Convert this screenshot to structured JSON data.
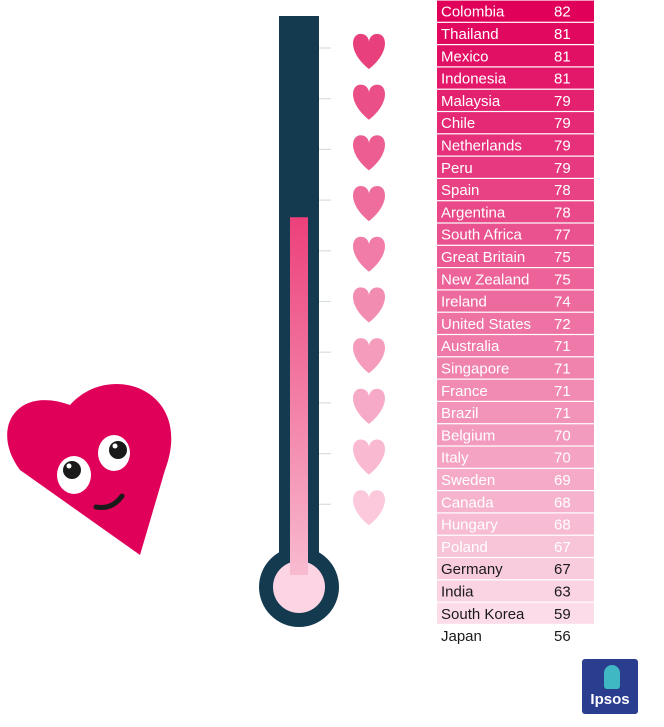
{
  "chart_data": {
    "type": "table",
    "rows": [
      {
        "country": "Colombia",
        "value": 82
      },
      {
        "country": "Thailand",
        "value": 81
      },
      {
        "country": "Mexico",
        "value": 81
      },
      {
        "country": "Indonesia",
        "value": 81
      },
      {
        "country": "Malaysia",
        "value": 79
      },
      {
        "country": "Chile",
        "value": 79
      },
      {
        "country": "Netherlands",
        "value": 79
      },
      {
        "country": "Peru",
        "value": 79
      },
      {
        "country": "Spain",
        "value": 78
      },
      {
        "country": "Argentina",
        "value": 78
      },
      {
        "country": "South Africa",
        "value": 77
      },
      {
        "country": "Great Britain",
        "value": 75
      },
      {
        "country": "New Zealand",
        "value": 75
      },
      {
        "country": "Ireland",
        "value": 74
      },
      {
        "country": "United States",
        "value": 72
      },
      {
        "country": "Australia",
        "value": 71
      },
      {
        "country": "Singapore",
        "value": 71
      },
      {
        "country": "France",
        "value": 71
      },
      {
        "country": "Brazil",
        "value": 71
      },
      {
        "country": "Belgium",
        "value": 70
      },
      {
        "country": "Italy",
        "value": 70
      },
      {
        "country": "Sweden",
        "value": 69
      },
      {
        "country": "Canada",
        "value": 68
      },
      {
        "country": "Hungary",
        "value": 68
      },
      {
        "country": "Poland",
        "value": 67
      },
      {
        "country": "Germany",
        "value": 67
      },
      {
        "country": "India",
        "value": 63
      },
      {
        "country": "South Korea",
        "value": 59
      },
      {
        "country": "Japan",
        "value": 56
      }
    ],
    "color_high": "#e0005a",
    "color_low": "#fbdce8",
    "thermometer_fill": "#f06292",
    "thermometer_dark": "#133a4f",
    "thermometer_level": 0.64,
    "heart_count": 10
  },
  "branding": {
    "logo_text": "Ipsos",
    "logo_icon": "ipsos-logo-icon",
    "logo_color": "#2a3d8f"
  },
  "mascot": {
    "icon": "smiling-heart-icon",
    "color": "#e0005a"
  }
}
